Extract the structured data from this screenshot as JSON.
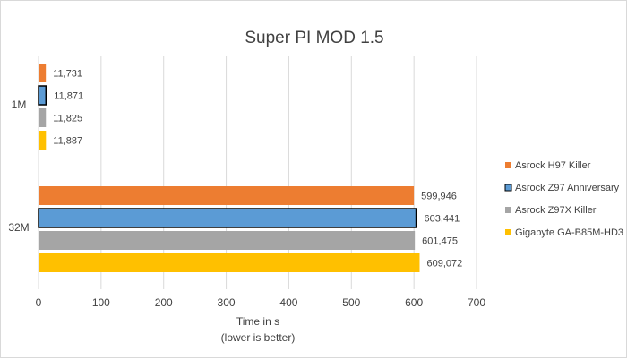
{
  "chart_data": {
    "type": "bar",
    "orientation": "horizontal",
    "title": "Super PI MOD 1.5",
    "xlabel": "Time in s",
    "xlabel_note": "(lower is better)",
    "ylabel": "",
    "xlim": [
      0,
      700
    ],
    "xticks": [
      "0",
      "100",
      "200",
      "300",
      "400",
      "500",
      "600",
      "700"
    ],
    "grid": "vertical",
    "legend": "right",
    "categories": [
      "1M",
      "32M"
    ],
    "series": [
      {
        "name": "Asrock H97 Killer",
        "color": "#ED7D31",
        "values": [
          11.731,
          599.946
        ],
        "labels": [
          "11,731",
          "599,946"
        ]
      },
      {
        "name": "Asrock Z97 Anniversary",
        "color": "#5B9BD5",
        "outlined": true,
        "values": [
          11.871,
          603.441
        ],
        "labels": [
          "11,871",
          "603,441"
        ]
      },
      {
        "name": "Asrock Z97X Killer",
        "color": "#A5A5A5",
        "values": [
          11.825,
          601.475
        ],
        "labels": [
          "11,825",
          "601,475"
        ]
      },
      {
        "name": "Gigabyte GA-B85M-HD3",
        "color": "#FFC000",
        "values": [
          11.887,
          609.072
        ],
        "labels": [
          "11,887",
          "609,072"
        ]
      }
    ]
  }
}
